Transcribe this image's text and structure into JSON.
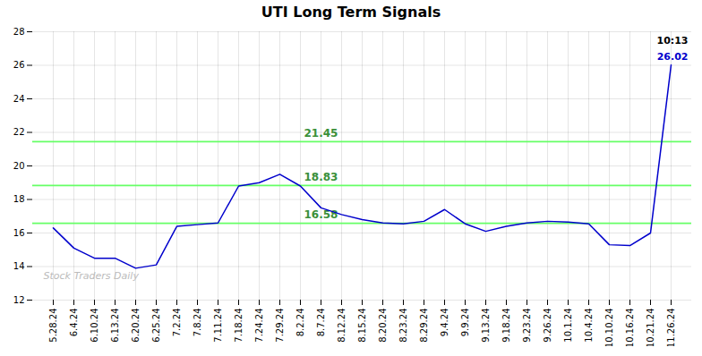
{
  "chart_data": {
    "type": "line",
    "title": "UTI Long Term Signals",
    "categories": [
      "5.28.24",
      "6.4.24",
      "6.10.24",
      "6.13.24",
      "6.20.24",
      "6.25.24",
      "7.2.24",
      "7.8.24",
      "7.11.24",
      "7.18.24",
      "7.24.24",
      "7.29.24",
      "8.2.24",
      "8.7.24",
      "8.12.24",
      "8.15.24",
      "8.20.24",
      "8.23.24",
      "8.29.24",
      "9.4.24",
      "9.9.24",
      "9.13.24",
      "9.18.24",
      "9.23.24",
      "9.26.24",
      "10.1.24",
      "10.4.24",
      "10.10.24",
      "10.16.24",
      "10.21.24",
      "11.26.24"
    ],
    "values": [
      16.3,
      15.1,
      14.5,
      14.5,
      13.9,
      14.1,
      16.4,
      16.5,
      16.6,
      18.8,
      19.0,
      19.5,
      18.8,
      17.5,
      17.1,
      16.8,
      16.6,
      16.55,
      16.7,
      17.4,
      16.55,
      16.1,
      16.4,
      16.6,
      16.7,
      16.65,
      16.55,
      15.3,
      15.25,
      16.0,
      26.02
    ],
    "color": "#0000cc",
    "ylim": [
      12,
      28
    ],
    "yticks": [
      12,
      14,
      16,
      18,
      20,
      22,
      24,
      26,
      28
    ],
    "grid": true,
    "reference_lines": {
      "values": [
        16.58,
        18.83,
        21.45
      ],
      "color": "#66ff66"
    },
    "watermark": "Stock Traders Daily",
    "annotations": [
      {
        "text": "10:13",
        "color": "#000000"
      },
      {
        "text": "26.02",
        "color": "#0000cc"
      }
    ]
  }
}
